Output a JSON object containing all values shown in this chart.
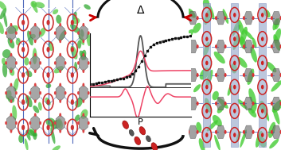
{
  "title": "Δ",
  "xlabel": "P",
  "bg_color": "#ffffff",
  "left_bg": "#d8ecd8",
  "right_bg": "#d8ecd8",
  "center_bg": "#ffffff",
  "top_arrow_color": "#111111",
  "top_arrow_red": "#cc0000",
  "bottom_arrow_color": "#111111",
  "co2_red": "#cc2222",
  "co2_gray": "#555555",
  "curve_black": "#111111",
  "curve_gray": "#555555",
  "curve_pink": "#ee4466",
  "left_green_dark": "#33aa33",
  "left_green_light": "#55cc44",
  "left_blue": "#2244aa",
  "left_red_node": "#cc3333",
  "left_gray_hex": "#555555",
  "right_green": "#44cc33",
  "right_blue_col": "#99aacc",
  "right_red_node": "#cc2222",
  "right_gray_hex": "#555566"
}
